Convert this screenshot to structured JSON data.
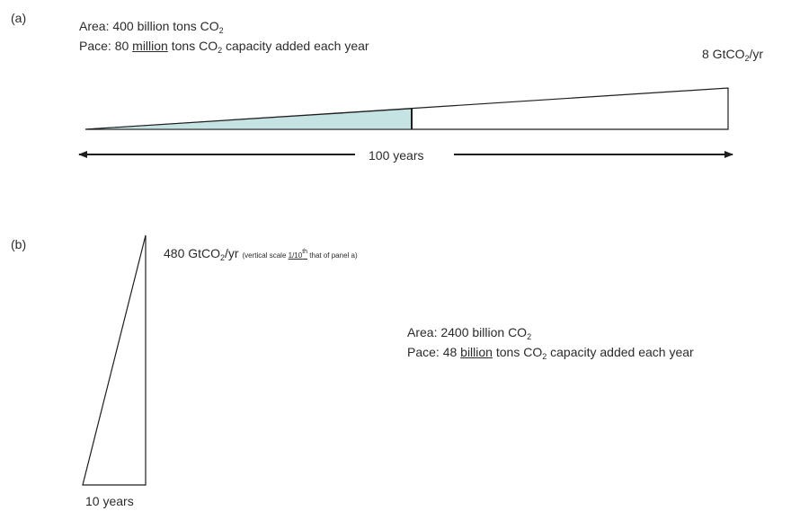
{
  "panel_a": {
    "label": "(a)",
    "area_text": "Area: 400 billion tons CO",
    "area_sub": "2",
    "pace_prefix": "Pace: 80 ",
    "pace_underlined": "million",
    "pace_mid": " tons CO",
    "pace_sub": "2",
    "pace_suffix": " capacity added each year",
    "rate_prefix": "8 GtCO",
    "rate_sub": "2",
    "rate_suffix": "/yr",
    "duration": "100 years",
    "colors": {
      "fill": "#c5e3e3",
      "stroke": "#1e1e1e"
    }
  },
  "panel_b": {
    "label": "(b)",
    "rate_prefix": "480 GtCO",
    "rate_sub": "2",
    "rate_suffix": "/yr",
    "note_prefix": "(vertical scale ",
    "note_underlined": "1/10",
    "note_sup": "th",
    "note_suffix": " that of panel a)",
    "area_text": "Area: 2400 billion CO",
    "area_sub": "2",
    "pace_prefix": "Pace: 48 ",
    "pace_underlined": "billion",
    "pace_mid": " tons CO",
    "pace_sub": "2",
    "pace_suffix": " capacity added each year",
    "duration": "10 years"
  }
}
